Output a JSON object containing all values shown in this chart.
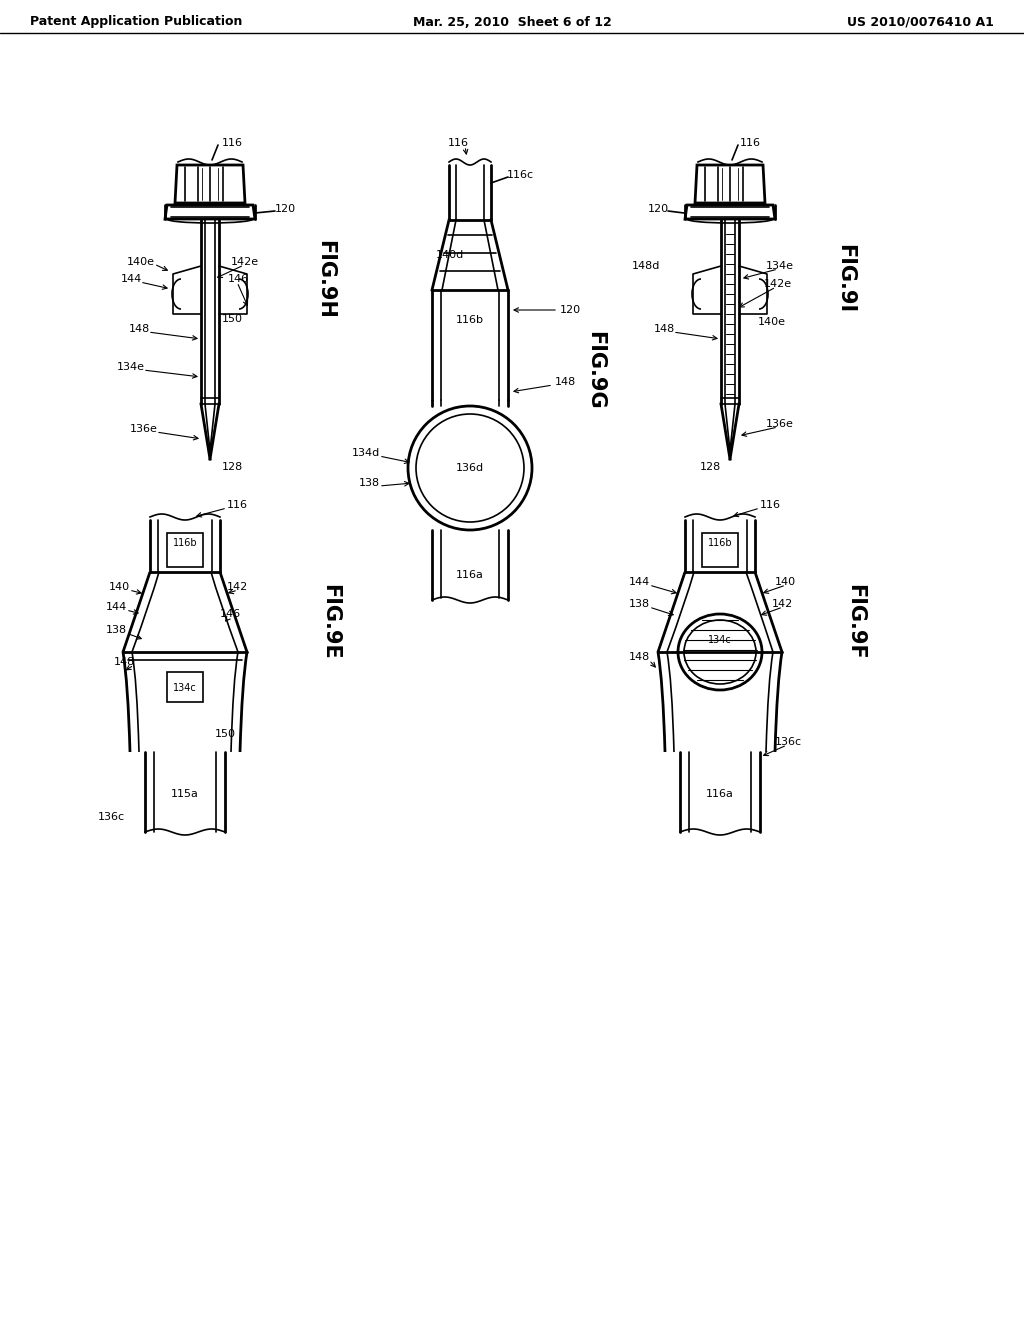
{
  "title_left": "Patent Application Publication",
  "title_mid": "Mar. 25, 2010  Sheet 6 of 12",
  "title_right": "US 2010/0076410 A1",
  "bg": "#ffffff",
  "lc": "#000000"
}
